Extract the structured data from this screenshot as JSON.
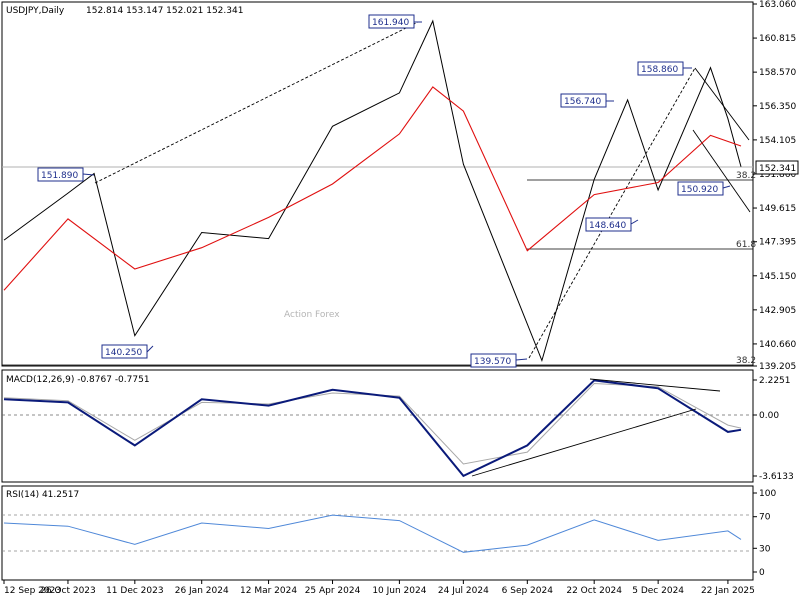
{
  "main": {
    "title": "USDJPY,Daily",
    "ohlc": "152.814 153.147 152.021 152.341",
    "watermark": "Action Forex",
    "price_label": "152.341",
    "ylim": [
      139.205,
      163.06
    ],
    "yticks": [
      "163.060",
      "160.815",
      "158.570",
      "156.350",
      "154.105",
      "151.860",
      "149.615",
      "147.395",
      "145.150",
      "142.905",
      "140.660",
      "139.205"
    ],
    "annotations": [
      "161.940",
      "151.890",
      "140.250",
      "139.570",
      "156.740",
      "158.860",
      "148.640",
      "150.920"
    ],
    "fib_labels": [
      "38.2",
      "61.8",
      "38.2"
    ]
  },
  "macd": {
    "title": "MACD(12,26,9) -0.8767 -0.7751",
    "yticks": [
      "2.2251",
      "0.00",
      "-3.6133"
    ],
    "ylim": [
      -3.6133,
      2.2251
    ]
  },
  "rsi": {
    "title": "RSI(14) 41.2517",
    "yticks": [
      "100",
      "70",
      "30",
      "0"
    ],
    "ylim": [
      0,
      100
    ]
  },
  "xaxis": {
    "labels": [
      "12 Sep 2023",
      "26 Oct 2023",
      "11 Dec 2023",
      "26 Jan 2024",
      "12 Mar 2024",
      "25 Apr 2024",
      "10 Jun 2024",
      "24 Jul 2024",
      "6 Sep 2024",
      "22 Oct 2024",
      "5 Dec 2024",
      "22 Jan 2025"
    ]
  },
  "colors": {
    "price": "#000000",
    "ma": "#e01010",
    "macd": "#0a1a7a",
    "signal": "#a8a8a8",
    "rsi": "#4f88d8",
    "annotation": "#1f2f8c",
    "grid_ref": "#b0b0b0"
  },
  "chart_data": {
    "type": "line",
    "symbol": "USDJPY",
    "timeframe": "Daily",
    "ohlc_last": {
      "open": 152.814,
      "high": 153.147,
      "low": 152.021,
      "close": 152.341
    },
    "price_series": {
      "x": [
        "12 Sep 2023",
        "26 Oct 2023",
        "13 Nov 2023",
        "11 Dec 2023",
        "26 Jan 2024",
        "12 Mar 2024",
        "25 Apr 2024",
        "10 Jun 2024",
        "3 Jul 2024",
        "24 Jul 2024",
        "16 Sep 2024",
        "22 Oct 2024",
        "14 Nov 2024",
        "5 Dec 2024",
        "10 Jan 2025",
        "22 Jan 2025",
        "31 Jan 2025"
      ],
      "close": [
        147.5,
        150.6,
        151.89,
        141.2,
        148.0,
        147.6,
        155.0,
        157.2,
        161.94,
        152.5,
        139.57,
        151.5,
        156.74,
        150.8,
        158.86,
        155.5,
        152.341
      ]
    },
    "ma_series": {
      "x": [
        "12 Sep 2023",
        "26 Oct 2023",
        "11 Dec 2023",
        "26 Jan 2024",
        "12 Mar 2024",
        "25 Apr 2024",
        "10 Jun 2024",
        "3 Jul 2024",
        "24 Jul 2024",
        "6 Sep 2024",
        "22 Oct 2024",
        "5 Dec 2024",
        "10 Jan 2025",
        "31 Jan 2025"
      ],
      "values": [
        144.2,
        148.9,
        145.6,
        147.0,
        149.0,
        151.2,
        154.5,
        157.6,
        156.0,
        146.8,
        150.5,
        151.3,
        154.4,
        153.7
      ]
    },
    "macd_series": {
      "x": [
        "12 Sep 2023",
        "26 Oct 2023",
        "11 Dec 2023",
        "26 Jan 2024",
        "12 Mar 2024",
        "25 Apr 2024",
        "10 Jun 2024",
        "24 Jul 2024",
        "6 Sep 2024",
        "22 Oct 2024",
        "5 Dec 2024",
        "22 Jan 2025",
        "31 Jan 2025"
      ],
      "macd": [
        1.0,
        0.8,
        -1.8,
        1.0,
        0.6,
        1.6,
        1.1,
        -3.61,
        -1.8,
        2.2,
        1.7,
        -1.0,
        -0.8767
      ],
      "signal": [
        1.1,
        0.9,
        -1.5,
        0.8,
        0.7,
        1.4,
        1.2,
        -2.9,
        -2.2,
        2.0,
        1.8,
        -0.6,
        -0.7751
      ]
    },
    "rsi_series": {
      "x": [
        "12 Sep 2023",
        "26 Oct 2023",
        "11 Dec 2023",
        "26 Jan 2024",
        "12 Mar 2024",
        "25 Apr 2024",
        "10 Jun 2024",
        "24 Jul 2024",
        "6 Sep 2024",
        "22 Oct 2024",
        "5 Dec 2024",
        "22 Jan 2025",
        "31 Jan 2025"
      ],
      "values": [
        62,
        58,
        35,
        62,
        55,
        72,
        65,
        25,
        34,
        66,
        40,
        52,
        41.2517
      ]
    }
  }
}
